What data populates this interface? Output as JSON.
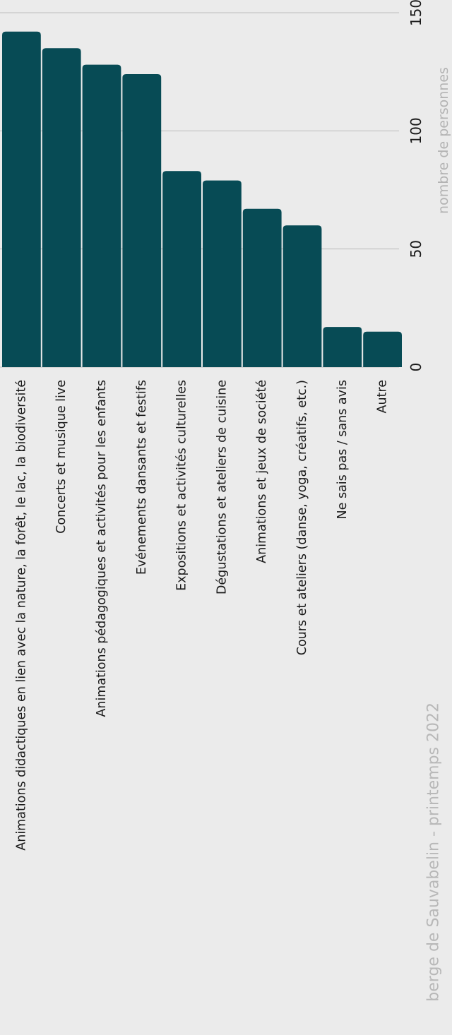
{
  "chart_data": {
    "type": "bar",
    "orientation": "rotated",
    "categories": [
      "Animations didactiques en lien avec la nature, la forêt, le lac, la biodiversité",
      "Concerts et musique live",
      "Animations pédagogiques et activités pour les enfants",
      "Evénements dansants et festifs",
      "Expositions et activités culturelles",
      "Dégustations et ateliers de cuisine",
      "Animations et jeux de société",
      "Cours et ateliers (danse, yoga, créatifs, etc.)",
      "Ne sais pas / sans avis",
      "Autre"
    ],
    "values": [
      142,
      135,
      128,
      124,
      83,
      79,
      67,
      60,
      17,
      15
    ],
    "ylabel": "nombre de personnes",
    "ylim": [
      0,
      150
    ],
    "yticks": [
      0,
      50,
      100,
      150
    ],
    "grid": true,
    "bar_color": "#074b55",
    "source_note": "berge de Sauvabelin - printemps 2022"
  }
}
